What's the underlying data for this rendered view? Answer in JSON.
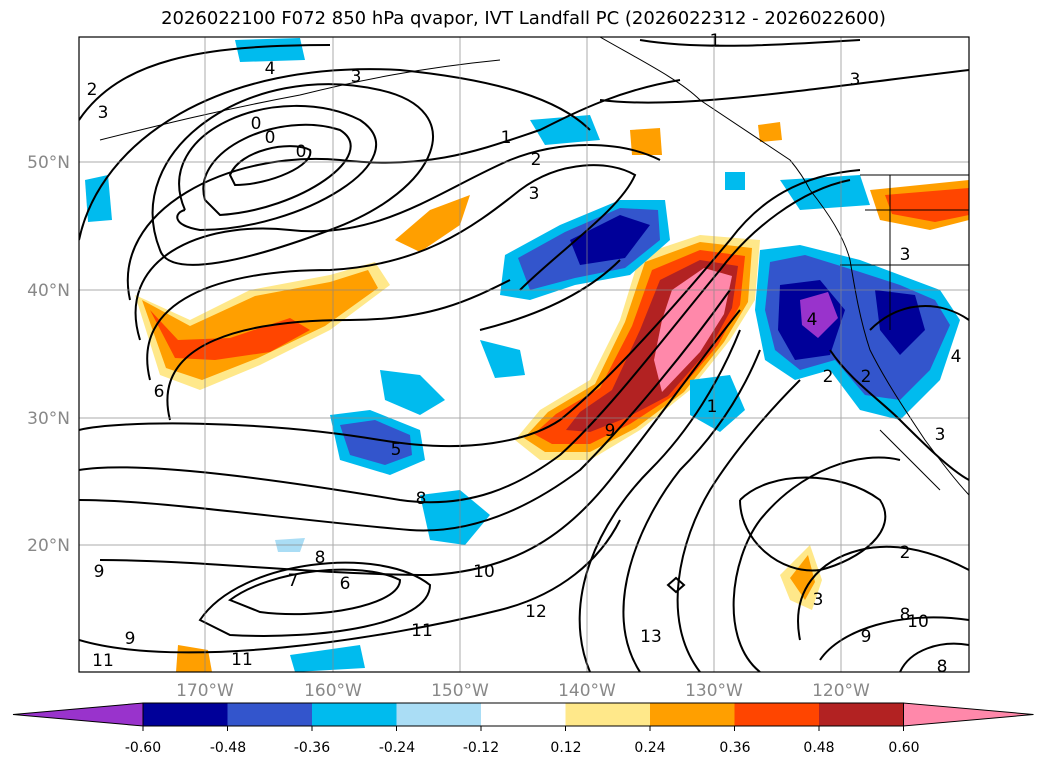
{
  "title": "2026022100 F072 850 hPa qvapor, IVT Landfall PC (2026022312 - 2026022600)",
  "map": {
    "lat_labels": [
      "50°N",
      "40°N",
      "30°N",
      "20°N"
    ],
    "lon_labels": [
      "170°W",
      "160°W",
      "150°W",
      "140°W",
      "130°W",
      "120°W"
    ],
    "contour_labels": [
      {
        "text": "4"
      },
      {
        "text": "3"
      },
      {
        "text": "2"
      },
      {
        "text": "3"
      },
      {
        "text": "0"
      },
      {
        "text": "0"
      },
      {
        "text": "0"
      },
      {
        "text": "1"
      },
      {
        "text": "1"
      },
      {
        "text": "2"
      },
      {
        "text": "3"
      },
      {
        "text": "6"
      },
      {
        "text": "5"
      },
      {
        "text": "8"
      },
      {
        "text": "8"
      },
      {
        "text": "7"
      },
      {
        "text": "6"
      },
      {
        "text": "9"
      },
      {
        "text": "9"
      },
      {
        "text": "11"
      },
      {
        "text": "11"
      },
      {
        "text": "11"
      },
      {
        "text": "10"
      },
      {
        "text": "12"
      },
      {
        "text": "13"
      },
      {
        "text": "9"
      },
      {
        "text": "1"
      },
      {
        "text": "4"
      },
      {
        "text": "3"
      },
      {
        "text": "2"
      },
      {
        "text": "4"
      },
      {
        "text": "2"
      },
      {
        "text": "3"
      },
      {
        "text": "2"
      },
      {
        "text": "3"
      },
      {
        "text": "8"
      },
      {
        "text": "10"
      },
      {
        "text": "9"
      },
      {
        "text": "8"
      },
      {
        "text": "3"
      }
    ]
  },
  "colorbar": {
    "colors": [
      "#9933cc",
      "#000099",
      "#3355cc",
      "#00bbee",
      "#aaddf5",
      "#ffffff",
      "#ffe88a",
      "#ff9f00",
      "#ff4500",
      "#b22222",
      "#ff88aa"
    ],
    "tick_labels": [
      "-0.60",
      "-0.48",
      "-0.36",
      "-0.24",
      "-0.12",
      "0.12",
      "0.24",
      "0.36",
      "0.48",
      "0.60"
    ]
  }
}
